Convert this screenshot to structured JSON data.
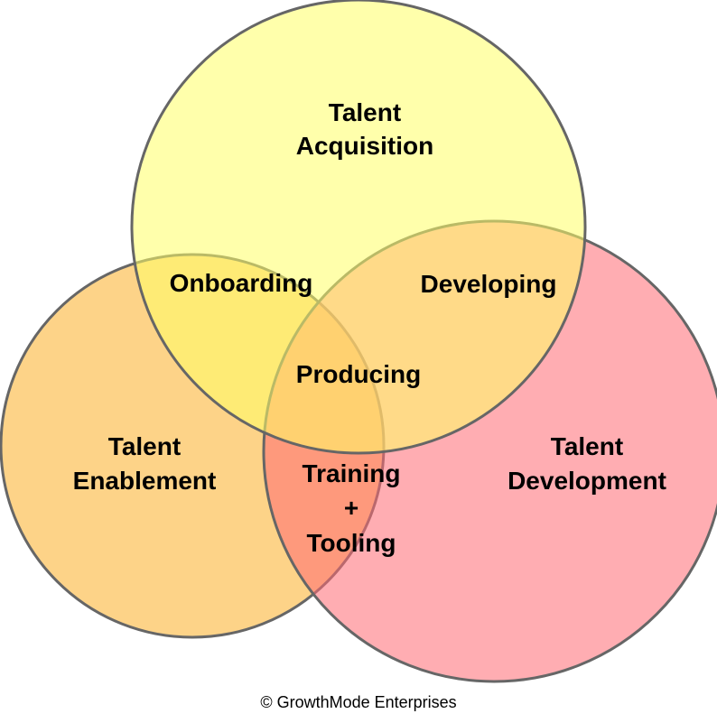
{
  "colors": {
    "acquisition": "#ffff66",
    "enablement": "#fcc25a",
    "development": "#ff6a73",
    "outline": "#666666"
  },
  "circles": {
    "acquisition": {
      "line1": "Talent",
      "line2": "Acquisition"
    },
    "enablement": {
      "line1": "Talent",
      "line2": "Enablement"
    },
    "development": {
      "line1": "Talent",
      "line2": "Development"
    }
  },
  "intersections": {
    "onboarding": "Onboarding",
    "developing": "Developing",
    "producing": "Producing",
    "training": {
      "line1": "Training",
      "line2": "+",
      "line3": "Tooling"
    }
  },
  "footer": {
    "copyright": "© GrowthMode Enterprises"
  }
}
